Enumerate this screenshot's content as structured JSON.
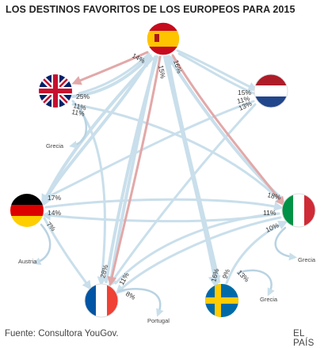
{
  "header": {
    "title": "LOS DESTINOS FAVORITOS DE LOS EUROPEOS PARA 2015"
  },
  "footer": {
    "source": "Fuente: Consultora YouGov.",
    "credit": "EL PAÍS"
  },
  "countries": [
    {
      "id": "spain",
      "flag": "spain-flag-icon"
    },
    {
      "id": "uk",
      "flag": "uk-flag-icon"
    },
    {
      "id": "netherlands",
      "flag": "netherlands-flag-icon"
    },
    {
      "id": "germany",
      "flag": "germany-flag-icon"
    },
    {
      "id": "italy",
      "flag": "italy-flag-icon"
    },
    {
      "id": "france",
      "flag": "france-flag-icon"
    },
    {
      "id": "sweden",
      "flag": "sweden-flag-icon"
    }
  ],
  "external_destinations": {
    "grecia_uk": "Grecia",
    "austria": "Austria",
    "portugal": "Portugal",
    "grecia_sweden": "Grecia",
    "grecia_italy": "Grecia"
  },
  "percentages": {
    "spain_uk": "14%",
    "spain_france": "15%",
    "spain_italy": "16%",
    "uk_1": "25%",
    "uk_2": "11%",
    "uk_3": "11%",
    "nl_1": "15%",
    "nl_2": "11%",
    "nl_3": "13%",
    "de_1": "17%",
    "de_2": "14%",
    "de_3": "7%",
    "it_1": "18%",
    "it_2": "11%",
    "it_3": "10%",
    "fr_1": "28%",
    "fr_2": "11%",
    "fr_3": "8%",
    "se_1": "16%",
    "se_2": "9%",
    "se_3": "13%"
  },
  "colors": {
    "flow": "#c9dfeb",
    "spain_flow": "#e2a8a8",
    "arrow_small": "#b9d3e2"
  }
}
